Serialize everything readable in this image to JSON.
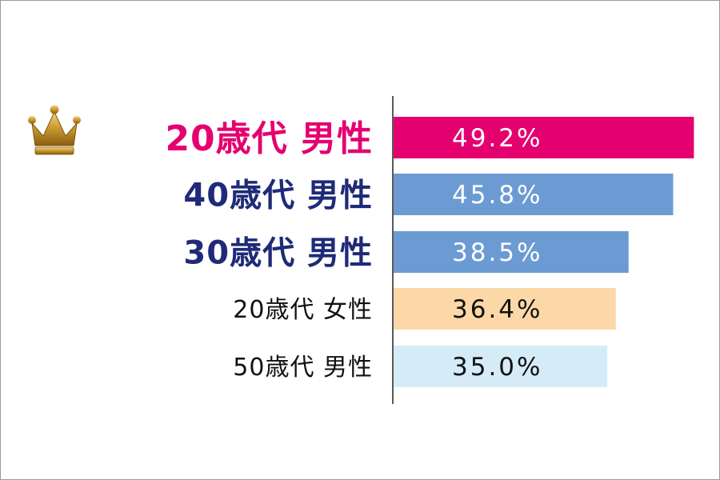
{
  "chart_data": {
    "type": "bar",
    "orientation": "horizontal",
    "categories": [
      "20歳代 男性",
      "40歳代 男性",
      "30歳代 男性",
      "20歳代 女性",
      "50歳代 男性"
    ],
    "values": [
      49.2,
      45.8,
      38.5,
      36.4,
      35.0
    ],
    "value_labels": [
      "49.2%",
      "45.8%",
      "38.5%",
      "36.4%",
      "35.0%"
    ],
    "bar_colors": [
      "#e5006f",
      "#6b9bd2",
      "#6b9bd2",
      "#fcd8a8",
      "#d6ebf8"
    ],
    "label_colors": [
      "#e5006f",
      "#1f2a78",
      "#1f2a78",
      "#111111",
      "#111111"
    ],
    "value_label_colors": [
      "#ffffff",
      "#ffffff",
      "#ffffff",
      "#111111",
      "#111111"
    ],
    "emphasis": [
      "top",
      "large",
      "large",
      "normal",
      "normal"
    ],
    "top_rank_icon": "crown-icon",
    "xlim": [
      0,
      50
    ],
    "grid": false,
    "legend": "none"
  }
}
